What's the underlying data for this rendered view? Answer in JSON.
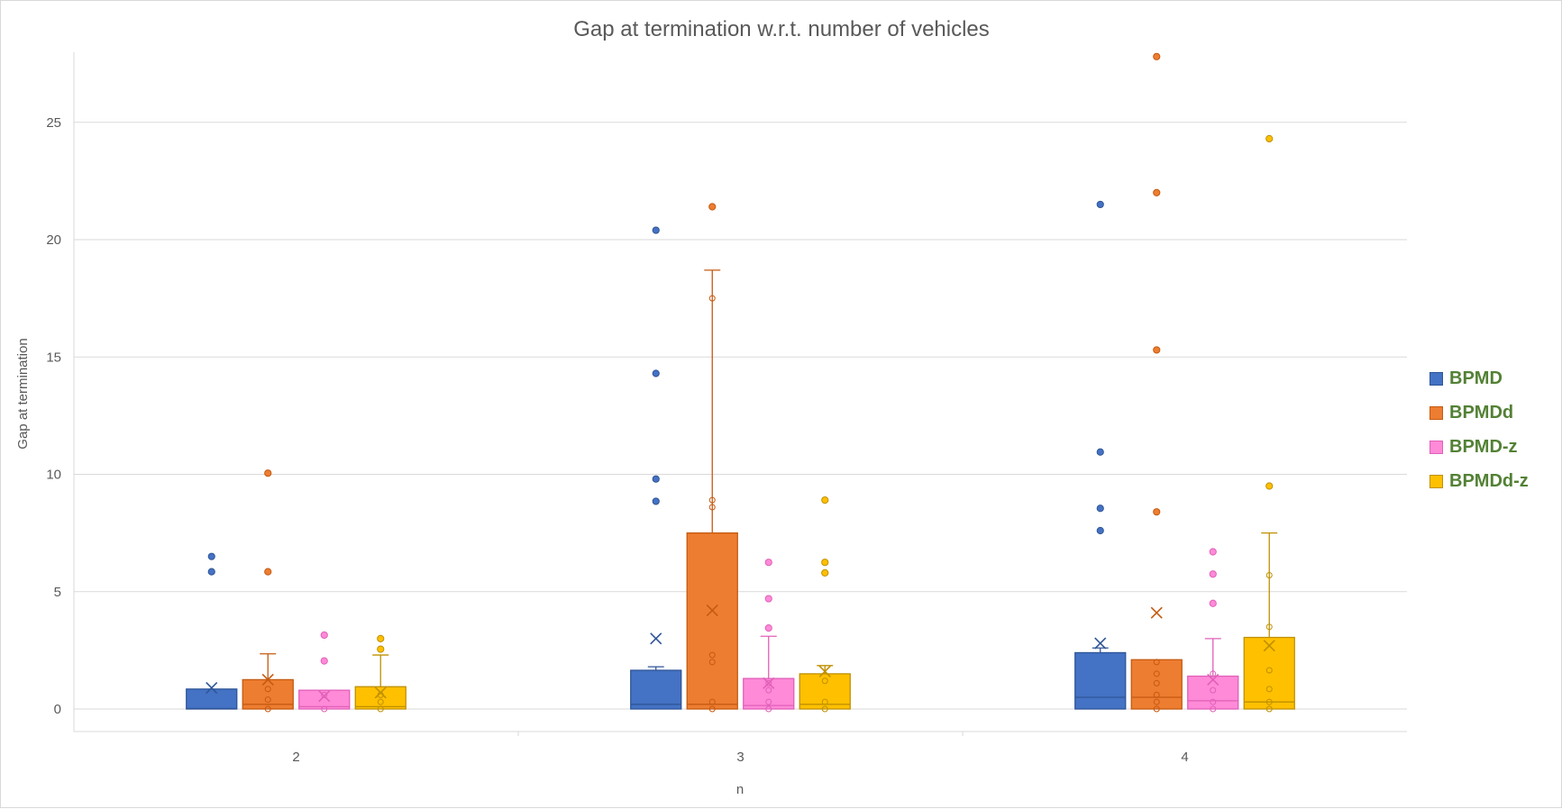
{
  "chart_data": {
    "type": "box",
    "title": "Gap at termination w.r.t. number of vehicles",
    "xlabel": "n",
    "ylabel": "Gap at termination",
    "ylim": [
      -1,
      28
    ],
    "yticks": [
      0,
      5,
      10,
      15,
      20,
      25
    ],
    "categories": [
      "2",
      "3",
      "4"
    ],
    "legend_position": "right",
    "grid": true,
    "series": [
      {
        "name": "BPMD",
        "color": "#4472C4",
        "boxes": [
          {
            "q1": 0,
            "median": 0.02,
            "q3": 0.85,
            "whisker_low": 0,
            "whisker_high": 0.85,
            "mean": 0.9,
            "outliers": [
              5.85,
              6.5
            ],
            "points": []
          },
          {
            "q1": 0,
            "median": 0.2,
            "q3": 1.65,
            "whisker_low": 0,
            "whisker_high": 1.8,
            "mean": 3.0,
            "outliers": [
              8.85,
              9.8,
              14.3,
              20.4
            ],
            "points": []
          },
          {
            "q1": 0,
            "median": 0.5,
            "q3": 2.4,
            "whisker_low": 0,
            "whisker_high": 2.6,
            "mean": 2.8,
            "outliers": [
              7.6,
              8.55,
              10.95,
              21.5
            ],
            "points": []
          }
        ]
      },
      {
        "name": "BPMDd",
        "color": "#ED7D31",
        "boxes": [
          {
            "q1": 0,
            "median": 0.2,
            "q3": 1.25,
            "whisker_low": 0,
            "whisker_high": 2.35,
            "mean": 1.25,
            "outliers": [
              5.85,
              10.05
            ],
            "points": [
              0,
              0.4,
              0.85
            ]
          },
          {
            "q1": 0,
            "median": 0.2,
            "q3": 7.5,
            "whisker_low": 0,
            "whisker_high": 18.7,
            "mean": 4.2,
            "outliers": [
              21.4
            ],
            "points": [
              0,
              0.3,
              2.0,
              2.3,
              8.6,
              8.9,
              17.5
            ]
          },
          {
            "q1": 0,
            "median": 0.5,
            "q3": 2.1,
            "whisker_low": 0,
            "whisker_high": 2.1,
            "mean": 4.1,
            "outliers": [
              8.4,
              15.3,
              22.0,
              27.8
            ],
            "points": [
              0,
              0.3,
              0.6,
              1.1,
              1.5,
              2.0
            ]
          }
        ]
      },
      {
        "name": "BPMD-z",
        "color": "#FF8AD8",
        "boxes": [
          {
            "q1": 0,
            "median": 0.1,
            "q3": 0.8,
            "whisker_low": 0,
            "whisker_high": 0.8,
            "mean": 0.55,
            "outliers": [
              2.05,
              3.15
            ],
            "points": [
              0,
              0.6
            ]
          },
          {
            "q1": 0,
            "median": 0.15,
            "q3": 1.3,
            "whisker_low": 0,
            "whisker_high": 3.1,
            "mean": 1.1,
            "outliers": [
              3.45,
              4.7,
              6.25
            ],
            "points": [
              0,
              0.3,
              0.8,
              1.1
            ]
          },
          {
            "q1": 0,
            "median": 0.35,
            "q3": 1.4,
            "whisker_low": 0,
            "whisker_high": 3.0,
            "mean": 1.25,
            "outliers": [
              4.5,
              5.75,
              6.7
            ],
            "points": [
              0,
              0.3,
              0.8,
              1.5
            ]
          }
        ]
      },
      {
        "name": "BPMDd-z",
        "color": "#FFC000",
        "boxes": [
          {
            "q1": 0,
            "median": 0.1,
            "q3": 0.95,
            "whisker_low": 0,
            "whisker_high": 2.3,
            "mean": 0.7,
            "outliers": [
              2.55,
              3.0
            ],
            "points": [
              0,
              0.3,
              0.6
            ]
          },
          {
            "q1": 0,
            "median": 0.2,
            "q3": 1.5,
            "whisker_low": 0,
            "whisker_high": 1.85,
            "mean": 1.6,
            "outliers": [
              5.8,
              6.25,
              8.9
            ],
            "points": [
              0,
              0.3,
              1.2
            ]
          },
          {
            "q1": 0,
            "median": 0.3,
            "q3": 3.05,
            "whisker_low": 0,
            "whisker_high": 7.5,
            "mean": 2.7,
            "outliers": [
              9.5,
              24.3
            ],
            "points": [
              0,
              0.3,
              0.85,
              1.65,
              3.5,
              5.7
            ]
          }
        ]
      }
    ]
  }
}
